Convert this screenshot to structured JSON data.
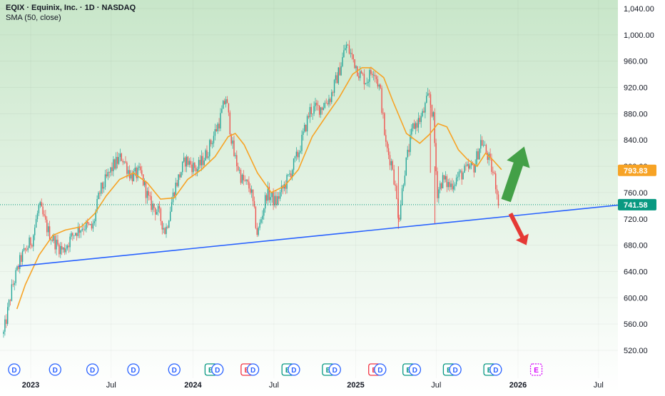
{
  "header": {
    "title": "EQIX · Equinix, Inc. · 1D · NASDAQ",
    "indicator": "SMA (50, close)"
  },
  "colors": {
    "background_top": "#c8e6c9",
    "background_bottom": "#ffffff",
    "candle_up": "#26a69a",
    "candle_down": "#ef5350",
    "sma": "#f7a325",
    "trendline": "#2962ff",
    "arrow_up": "#43a047",
    "arrow_down": "#e53935",
    "price_badge": "#089981",
    "sma_badge": "#f7a325"
  },
  "chart_data": {
    "type": "candlestick",
    "title": "EQIX · Equinix, Inc. · 1D · NASDAQ",
    "indicator": "SMA (50, close)",
    "ylim": [
      500,
      1050
    ],
    "y_ticks": [
      "1,040.00",
      "1,000.00",
      "960.00",
      "920.00",
      "880.00",
      "840.00",
      "800.00",
      "760.00",
      "720.00",
      "680.00",
      "640.00",
      "600.00",
      "560.00",
      "520.00"
    ],
    "x_ticks": [
      "2023",
      "Jul",
      "2024",
      "Jul",
      "2025",
      "Jul",
      "2026",
      "Jul"
    ],
    "last_price": "741.58",
    "sma_value": "793.83",
    "price_path": [
      [
        "2022-11-01",
        545
      ],
      [
        "2022-11-20",
        615
      ],
      [
        "2022-12-10",
        660
      ],
      [
        "2023-01-05",
        690
      ],
      [
        "2023-01-20",
        740
      ],
      [
        "2023-02-10",
        700
      ],
      [
        "2023-03-01",
        680
      ],
      [
        "2023-03-15",
        672
      ],
      [
        "2023-04-10",
        700
      ],
      [
        "2023-05-01",
        710
      ],
      [
        "2023-05-20",
        705
      ],
      [
        "2023-06-05",
        760
      ],
      [
        "2023-07-05",
        800
      ],
      [
        "2023-07-25",
        815
      ],
      [
        "2023-08-15",
        785
      ],
      [
        "2023-09-05",
        790
      ],
      [
        "2023-09-25",
        745
      ],
      [
        "2023-10-15",
        730
      ],
      [
        "2023-10-31",
        700
      ],
      [
        "2023-11-20",
        765
      ],
      [
        "2023-12-15",
        810
      ],
      [
        "2024-01-10",
        795
      ],
      [
        "2024-02-01",
        820
      ],
      [
        "2024-03-01",
        870
      ],
      [
        "2024-03-15",
        905
      ],
      [
        "2024-04-01",
        820
      ],
      [
        "2024-04-20",
        780
      ],
      [
        "2024-05-10",
        765
      ],
      [
        "2024-05-25",
        695
      ],
      [
        "2024-06-15",
        760
      ],
      [
        "2024-07-05",
        745
      ],
      [
        "2024-08-01",
        780
      ],
      [
        "2024-08-25",
        820
      ],
      [
        "2024-09-20",
        885
      ],
      [
        "2024-10-15",
        890
      ],
      [
        "2024-11-05",
        905
      ],
      [
        "2024-11-25",
        945
      ],
      [
        "2024-12-10",
        985
      ],
      [
        "2024-12-25",
        965
      ],
      [
        "2025-01-10",
        940
      ],
      [
        "2025-01-25",
        930
      ],
      [
        "2025-02-10",
        950
      ],
      [
        "2025-02-25",
        915
      ],
      [
        "2025-03-10",
        830
      ],
      [
        "2025-03-25",
        800
      ],
      [
        "2025-04-08",
        720
      ],
      [
        "2025-04-20",
        790
      ],
      [
        "2025-05-10",
        860
      ],
      [
        "2025-05-30",
        875
      ],
      [
        "2025-06-15",
        910
      ],
      [
        "2025-06-25",
        870
      ],
      [
        "2025-07-03",
        760
      ],
      [
        "2025-07-15",
        780
      ],
      [
        "2025-08-01",
        770
      ],
      [
        "2025-08-20",
        785
      ],
      [
        "2025-09-10",
        795
      ],
      [
        "2025-09-25",
        800
      ],
      [
        "2025-10-10",
        840
      ],
      [
        "2025-10-25",
        815
      ],
      [
        "2025-11-10",
        780
      ],
      [
        "2025-11-20",
        742
      ]
    ],
    "sma_series": [
      [
        "2022-12-01",
        583
      ],
      [
        "2022-12-20",
        620
      ],
      [
        "2023-01-20",
        665
      ],
      [
        "2023-02-20",
        695
      ],
      [
        "2023-03-20",
        703
      ],
      [
        "2023-04-25",
        708
      ],
      [
        "2023-05-25",
        728
      ],
      [
        "2023-06-20",
        755
      ],
      [
        "2023-07-20",
        780
      ],
      [
        "2023-08-20",
        790
      ],
      [
        "2023-09-20",
        775
      ],
      [
        "2023-10-20",
        750
      ],
      [
        "2023-11-20",
        752
      ],
      [
        "2023-12-20",
        780
      ],
      [
        "2024-01-20",
        795
      ],
      [
        "2024-02-20",
        815
      ],
      [
        "2024-03-20",
        845
      ],
      [
        "2024-04-05",
        850
      ],
      [
        "2024-04-25",
        833
      ],
      [
        "2024-05-25",
        790
      ],
      [
        "2024-06-25",
        760
      ],
      [
        "2024-07-25",
        770
      ],
      [
        "2024-08-25",
        795
      ],
      [
        "2024-09-25",
        845
      ],
      [
        "2024-10-25",
        875
      ],
      [
        "2024-11-25",
        905
      ],
      [
        "2024-12-25",
        940
      ],
      [
        "2025-01-15",
        950
      ],
      [
        "2025-02-05",
        950
      ],
      [
        "2025-03-05",
        935
      ],
      [
        "2025-03-25",
        900
      ],
      [
        "2025-04-25",
        850
      ],
      [
        "2025-05-25",
        835
      ],
      [
        "2025-06-15",
        848
      ],
      [
        "2025-07-05",
        865
      ],
      [
        "2025-07-25",
        860
      ],
      [
        "2025-08-20",
        825
      ],
      [
        "2025-09-10",
        810
      ],
      [
        "2025-10-01",
        800
      ],
      [
        "2025-10-20",
        820
      ],
      [
        "2025-11-05",
        810
      ],
      [
        "2025-11-25",
        795
      ]
    ],
    "trendline": [
      [
        "2022-12-05",
        648
      ],
      [
        "2026-08-15",
        741
      ]
    ],
    "events": [
      {
        "date": "2022-11-25",
        "label": "D",
        "kind": "dividend"
      },
      {
        "date": "2023-02-25",
        "label": "D",
        "kind": "dividend"
      },
      {
        "date": "2023-05-20",
        "label": "D",
        "kind": "dividend"
      },
      {
        "date": "2023-08-20",
        "label": "D",
        "kind": "dividend"
      },
      {
        "date": "2023-11-20",
        "label": "D",
        "kind": "dividend"
      },
      {
        "date": "2024-02-10",
        "label": "E",
        "kind": "earnings-beat"
      },
      {
        "date": "2024-02-25",
        "label": "D",
        "kind": "dividend"
      },
      {
        "date": "2024-05-01",
        "label": "E",
        "kind": "earnings-miss"
      },
      {
        "date": "2024-05-15",
        "label": "D",
        "kind": "dividend"
      },
      {
        "date": "2024-08-01",
        "label": "E",
        "kind": "earnings-beat"
      },
      {
        "date": "2024-08-15",
        "label": "D",
        "kind": "dividend"
      },
      {
        "date": "2024-10-31",
        "label": "E",
        "kind": "earnings-beat"
      },
      {
        "date": "2024-11-15",
        "label": "D",
        "kind": "dividend"
      },
      {
        "date": "2025-02-12",
        "label": "E",
        "kind": "earnings-miss"
      },
      {
        "date": "2025-02-25",
        "label": "D",
        "kind": "dividend"
      },
      {
        "date": "2025-04-30",
        "label": "E",
        "kind": "earnings-beat"
      },
      {
        "date": "2025-05-14",
        "label": "D",
        "kind": "dividend"
      },
      {
        "date": "2025-07-30",
        "label": "E",
        "kind": "earnings-beat"
      },
      {
        "date": "2025-08-13",
        "label": "D",
        "kind": "dividend"
      },
      {
        "date": "2025-10-29",
        "label": "E",
        "kind": "earnings-beat"
      },
      {
        "date": "2025-11-12",
        "label": "D",
        "kind": "dividend"
      },
      {
        "date": "2026-02-11",
        "label": "E",
        "kind": "earnings-upcoming"
      }
    ],
    "arrows": [
      {
        "direction": "up",
        "from": [
          "2025-12-05",
          748
        ],
        "to": [
          "2026-01-15",
          830
        ]
      },
      {
        "direction": "down",
        "from": [
          "2025-12-15",
          728
        ],
        "to": [
          "2026-01-20",
          680
        ]
      }
    ]
  }
}
